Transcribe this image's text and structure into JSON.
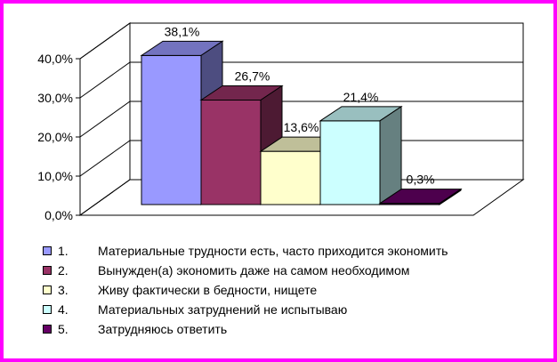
{
  "chart_data": {
    "type": "bar",
    "categories": [
      "1.",
      "2.",
      "3.",
      "4.",
      "5."
    ],
    "series": [
      {
        "values": [
          38.1,
          26.7,
          13.6,
          21.4,
          0.3
        ],
        "data_labels": [
          "38,1%",
          "26,7%",
          "13,6%",
          "21,4%",
          "0,3%"
        ],
        "colors": [
          "#9999ff",
          "#993366",
          "#ffffcc",
          "#ccffff",
          "#660066"
        ]
      }
    ],
    "ylim": [
      0,
      40
    ],
    "y_ticks": [
      0,
      10,
      20,
      30,
      40
    ],
    "y_tick_labels": [
      "0,0%",
      "10,0%",
      "20,0%",
      "30,0%",
      "40,0%"
    ],
    "three_d": true,
    "grid": true,
    "legend_position": "bottom"
  },
  "legend": {
    "items": [
      {
        "number": "1.",
        "label": "Материальные трудности есть, часто приходится экономить",
        "color": "#9999ff"
      },
      {
        "number": "2.",
        "label": "Вынужден(а) экономить даже на самом необходимом",
        "color": "#993366"
      },
      {
        "number": "3.",
        "label": "Живу фактически в бедности, нищете",
        "color": "#ffffcc"
      },
      {
        "number": "4.",
        "label": "Материальных затруднений не испытываю",
        "color": "#ccffff"
      },
      {
        "number": "5.",
        "label": "Затрудняюсь ответить",
        "color": "#660066"
      }
    ]
  },
  "colors": {
    "frame": "#ff00ff",
    "wall": "#ffffff",
    "gridline": "#000000"
  }
}
